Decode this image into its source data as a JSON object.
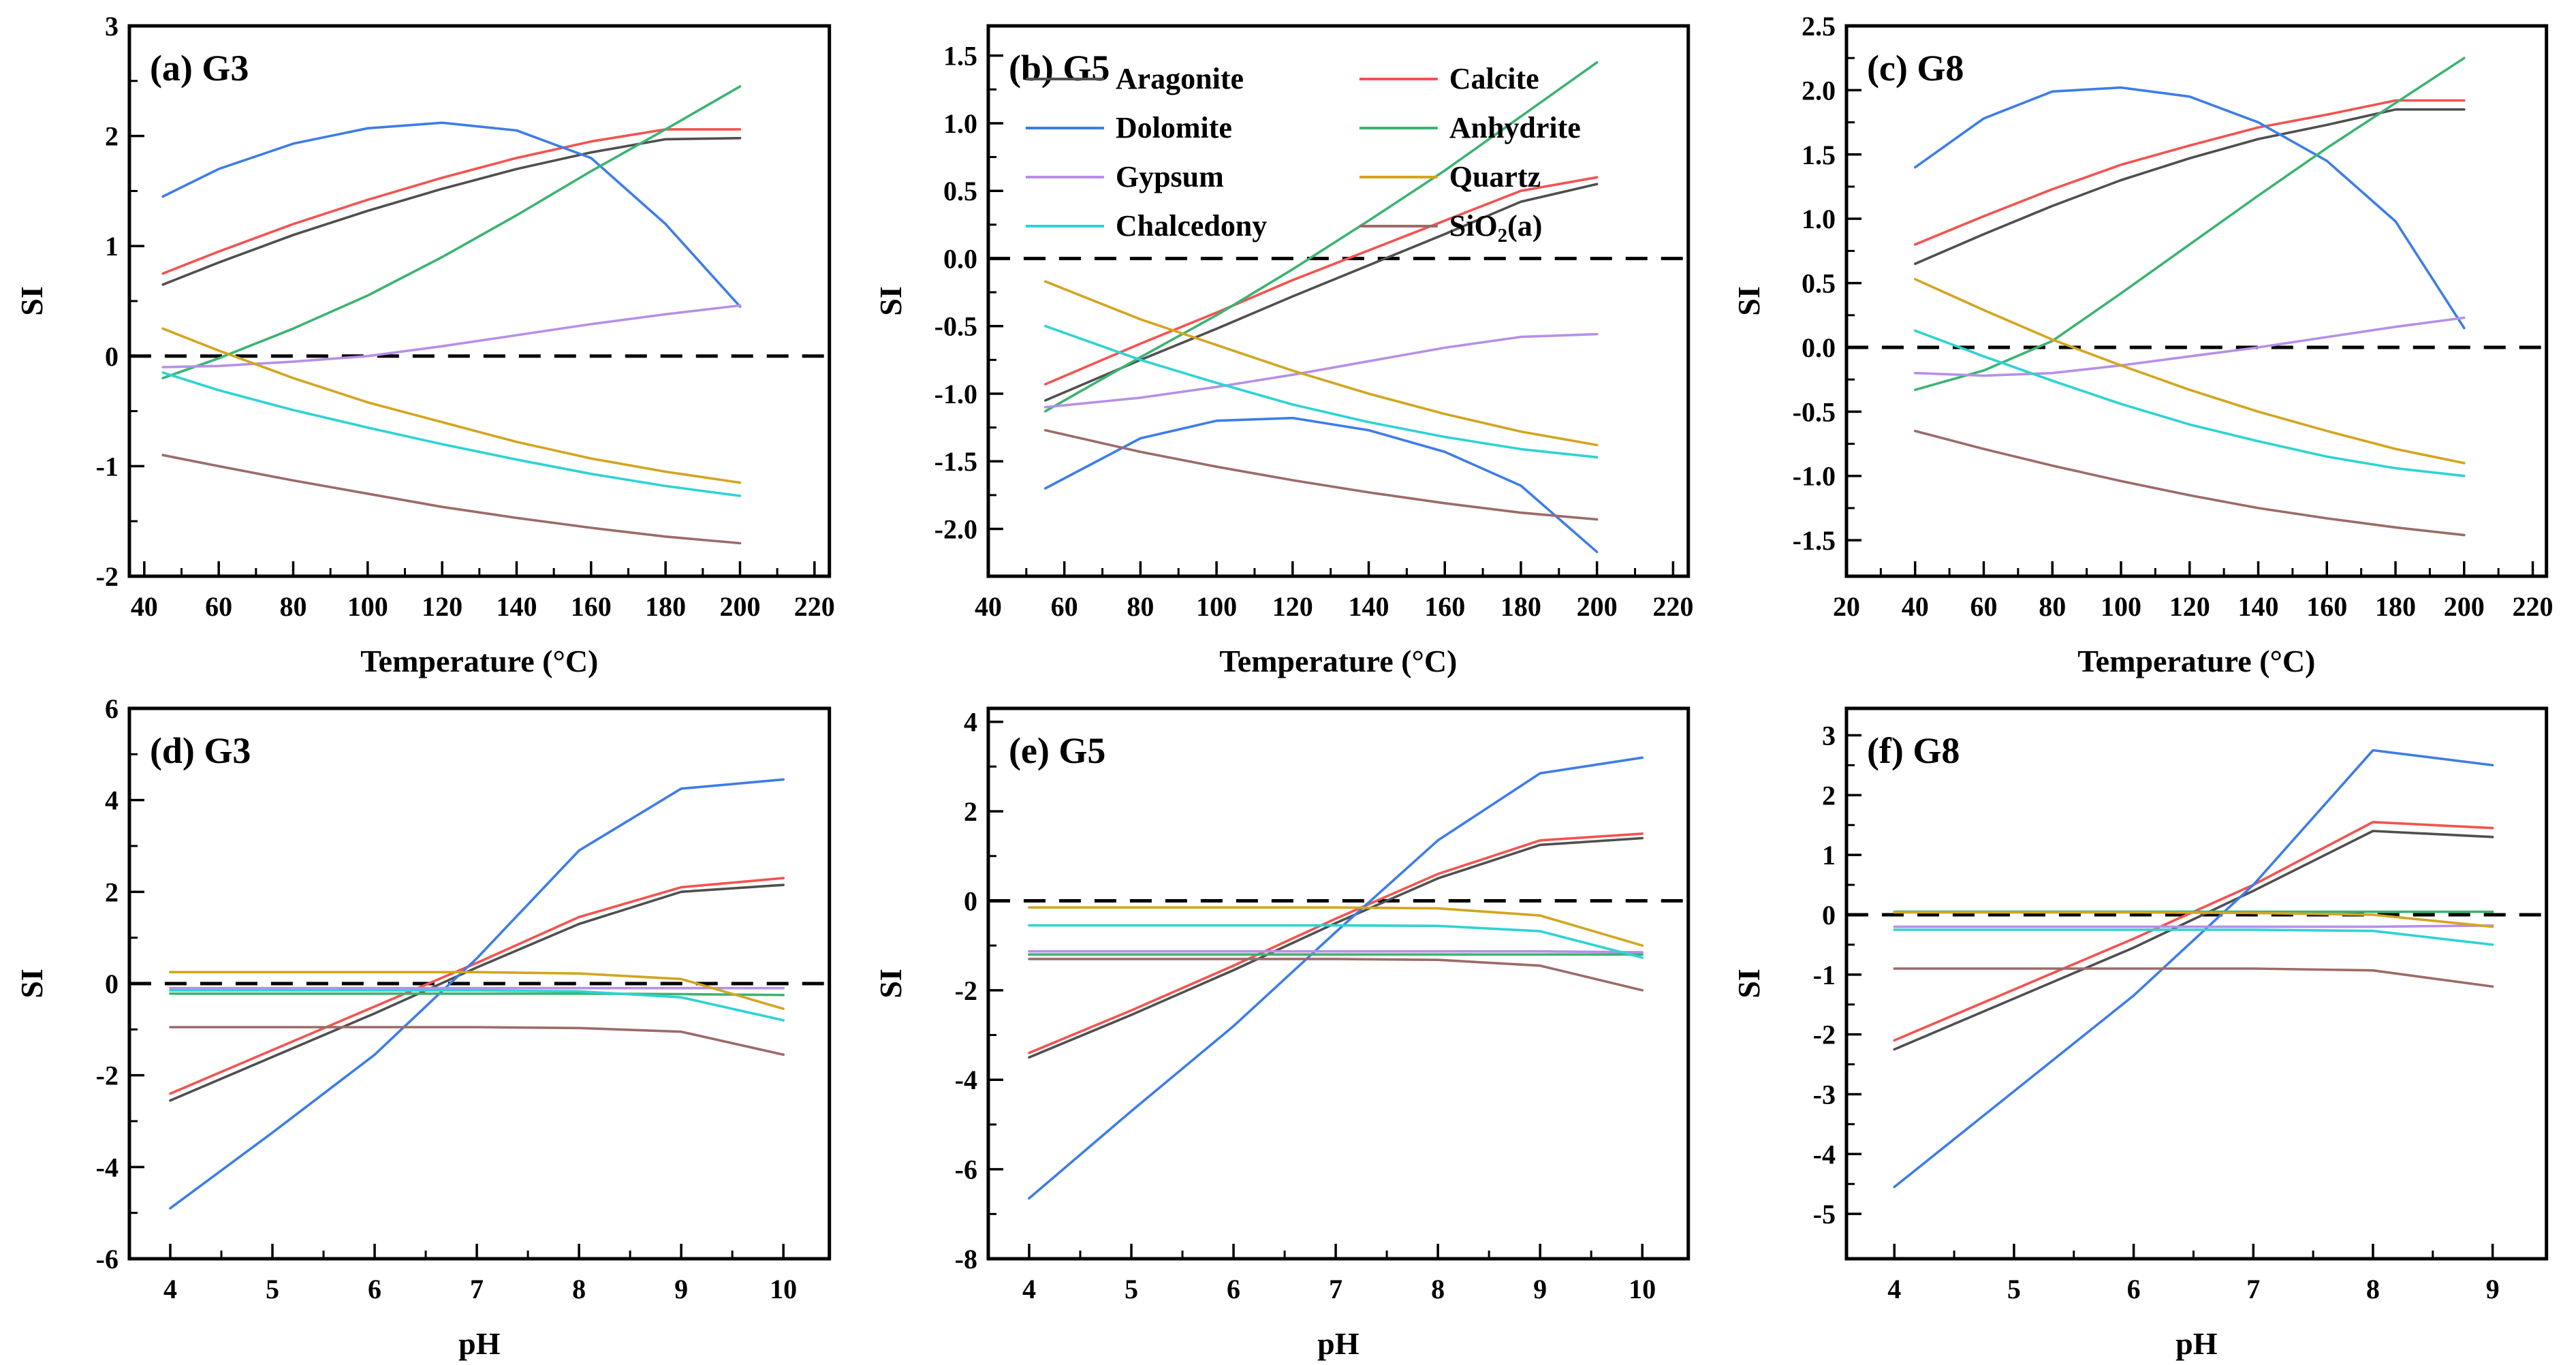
{
  "figure": {
    "background": "#ffffff",
    "frame_color": "#000000",
    "zero_line_style": "dashed"
  },
  "chart_data": {
    "type": "line",
    "ylabel": "SI",
    "colors": {
      "Aragonite": "#4f4f4f",
      "Calcite": "#f4534f",
      "Dolomite": "#3d7de6",
      "Anhydrite": "#3cb371",
      "Gypsum": "#b78fe8",
      "Quartz": "#d3a51f",
      "Chalcedony": "#2ed3d3",
      "SiO₂(a)": "#9c6b68"
    },
    "legend": {
      "panel": "b",
      "position": "upper-left",
      "entries": [
        "Aragonite",
        "Calcite",
        "Dolomite",
        "Anhydrite",
        "Gypsum",
        "Quartz",
        "Chalcedony",
        "SiO₂(a)"
      ]
    },
    "panels": [
      {
        "id": "a",
        "title": "(a) G3",
        "xlabel": "Temperature (°C)",
        "ylabel": "SI",
        "x_range": [
          36,
          224
        ],
        "y_range": [
          -2,
          3
        ],
        "x_ticks": [
          40,
          60,
          80,
          100,
          120,
          140,
          160,
          180,
          200,
          220
        ],
        "x_tick_labels": [
          "40",
          "60",
          "80",
          "100",
          "120",
          "140",
          "160",
          "180",
          "200",
          "220"
        ],
        "y_ticks": [
          -2,
          -1,
          0,
          1,
          2,
          3
        ],
        "y_tick_labels": [
          "-2",
          "-1",
          "0",
          "1",
          "2",
          "3"
        ],
        "zero_line": true,
        "legend": false,
        "x": [
          45,
          60,
          80,
          100,
          120,
          140,
          160,
          180,
          200
        ],
        "series": [
          {
            "name": "Aragonite",
            "values": [
              0.65,
              0.85,
              1.1,
              1.32,
              1.52,
              1.7,
              1.85,
              1.97,
              1.98
            ]
          },
          {
            "name": "Calcite",
            "values": [
              0.75,
              0.95,
              1.2,
              1.42,
              1.62,
              1.8,
              1.95,
              2.06,
              2.06
            ]
          },
          {
            "name": "Dolomite",
            "values": [
              1.45,
              1.7,
              1.93,
              2.07,
              2.12,
              2.05,
              1.8,
              1.2,
              0.45
            ]
          },
          {
            "name": "Anhydrite",
            "values": [
              -0.2,
              -0.02,
              0.25,
              0.55,
              0.9,
              1.28,
              1.68,
              2.06,
              2.45
            ]
          },
          {
            "name": "Gypsum",
            "values": [
              -0.1,
              -0.09,
              -0.05,
              0.0,
              0.09,
              0.19,
              0.29,
              0.38,
              0.46
            ]
          },
          {
            "name": "Quartz",
            "values": [
              0.25,
              0.05,
              -0.2,
              -0.42,
              -0.6,
              -0.78,
              -0.93,
              -1.05,
              -1.15
            ]
          },
          {
            "name": "Chalcedony",
            "values": [
              -0.15,
              -0.31,
              -0.49,
              -0.65,
              -0.8,
              -0.94,
              -1.07,
              -1.18,
              -1.27
            ]
          },
          {
            "name": "SiO₂(a)",
            "values": [
              -0.9,
              -1.0,
              -1.13,
              -1.25,
              -1.37,
              -1.47,
              -1.56,
              -1.64,
              -1.7
            ]
          }
        ]
      },
      {
        "id": "b",
        "title": "(b) G5",
        "xlabel": "Temperature (°C)",
        "ylabel": "SI",
        "x_range": [
          40,
          224
        ],
        "y_range": [
          -2.35,
          1.72
        ],
        "x_ticks": [
          40,
          60,
          80,
          100,
          120,
          140,
          160,
          180,
          200,
          220
        ],
        "x_tick_labels": [
          "40",
          "60",
          "80",
          "100",
          "120",
          "140",
          "160",
          "180",
          "200",
          "220"
        ],
        "y_ticks": [
          -2.0,
          -1.5,
          -1.0,
          -0.5,
          0.0,
          0.5,
          1.0,
          1.5
        ],
        "y_tick_labels": [
          "-2.0",
          "-1.5",
          "-1.0",
          "-0.5",
          "0.0",
          "0.5",
          "1.0",
          "1.5"
        ],
        "zero_line": true,
        "legend": true,
        "x": [
          55,
          80,
          100,
          120,
          140,
          160,
          180,
          200
        ],
        "series": [
          {
            "name": "Aragonite",
            "values": [
              -1.05,
              -0.75,
              -0.52,
              -0.28,
              -0.05,
              0.18,
              0.42,
              0.55
            ]
          },
          {
            "name": "Calcite",
            "values": [
              -0.93,
              -0.63,
              -0.4,
              -0.16,
              0.06,
              0.28,
              0.5,
              0.6
            ]
          },
          {
            "name": "Dolomite",
            "values": [
              -1.7,
              -1.33,
              -1.2,
              -1.18,
              -1.27,
              -1.43,
              -1.68,
              -2.17
            ]
          },
          {
            "name": "Anhydrite",
            "values": [
              -1.13,
              -0.73,
              -0.42,
              -0.08,
              0.28,
              0.65,
              1.05,
              1.45
            ]
          },
          {
            "name": "Gypsum",
            "values": [
              -1.1,
              -1.03,
              -0.95,
              -0.86,
              -0.76,
              -0.66,
              -0.58,
              -0.56
            ]
          },
          {
            "name": "Quartz",
            "values": [
              -0.17,
              -0.45,
              -0.64,
              -0.83,
              -1.0,
              -1.15,
              -1.28,
              -1.38
            ]
          },
          {
            "name": "Chalcedony",
            "values": [
              -0.5,
              -0.75,
              -0.92,
              -1.08,
              -1.21,
              -1.32,
              -1.41,
              -1.47
            ]
          },
          {
            "name": "SiO₂(a)",
            "values": [
              -1.27,
              -1.43,
              -1.54,
              -1.64,
              -1.73,
              -1.81,
              -1.88,
              -1.93
            ]
          }
        ]
      },
      {
        "id": "c",
        "title": "(c) G8",
        "xlabel": "Temperature (°C)",
        "ylabel": "SI",
        "x_range": [
          20,
          224
        ],
        "y_range": [
          -1.78,
          2.5
        ],
        "x_ticks": [
          20,
          40,
          60,
          80,
          100,
          120,
          140,
          160,
          180,
          200,
          220
        ],
        "x_tick_labels": [
          "20",
          "40",
          "60",
          "80",
          "100",
          "120",
          "140",
          "160",
          "180",
          "200",
          "220"
        ],
        "y_ticks": [
          -1.5,
          -1.0,
          -0.5,
          0.0,
          0.5,
          1.0,
          1.5,
          2.0,
          2.5
        ],
        "y_tick_labels": [
          "-1.5",
          "-1.0",
          "-0.5",
          "0.0",
          "0.5",
          "1.0",
          "1.5",
          "2.0",
          "2.5"
        ],
        "zero_line": true,
        "legend": false,
        "x": [
          40,
          60,
          80,
          100,
          120,
          140,
          160,
          180,
          200
        ],
        "series": [
          {
            "name": "Aragonite",
            "values": [
              0.65,
              0.88,
              1.1,
              1.3,
              1.47,
              1.62,
              1.73,
              1.85,
              1.85
            ]
          },
          {
            "name": "Calcite",
            "values": [
              0.8,
              1.02,
              1.23,
              1.42,
              1.57,
              1.71,
              1.81,
              1.92,
              1.92
            ]
          },
          {
            "name": "Dolomite",
            "values": [
              1.4,
              1.78,
              1.99,
              2.02,
              1.95,
              1.75,
              1.45,
              0.98,
              0.15
            ]
          },
          {
            "name": "Anhydrite",
            "values": [
              -0.33,
              -0.18,
              0.05,
              0.42,
              0.8,
              1.18,
              1.55,
              1.9,
              2.25
            ]
          },
          {
            "name": "Gypsum",
            "values": [
              -0.2,
              -0.22,
              -0.2,
              -0.14,
              -0.07,
              0.0,
              0.08,
              0.16,
              0.23
            ]
          },
          {
            "name": "Quartz",
            "values": [
              0.53,
              0.29,
              0.06,
              -0.14,
              -0.33,
              -0.5,
              -0.65,
              -0.79,
              -0.9
            ]
          },
          {
            "name": "Chalcedony",
            "values": [
              0.13,
              -0.07,
              -0.26,
              -0.44,
              -0.6,
              -0.73,
              -0.85,
              -0.94,
              -1.0
            ]
          },
          {
            "name": "SiO₂(a)",
            "values": [
              -0.65,
              -0.79,
              -0.92,
              -1.04,
              -1.15,
              -1.25,
              -1.33,
              -1.4,
              -1.46
            ]
          }
        ]
      },
      {
        "id": "d",
        "title": "(d) G3",
        "xlabel": "pH",
        "ylabel": "SI",
        "x_range": [
          3.6,
          10.45
        ],
        "y_range": [
          -6,
          6
        ],
        "x_ticks": [
          4,
          5,
          6,
          7,
          8,
          9,
          10
        ],
        "x_tick_labels": [
          "4",
          "5",
          "6",
          "7",
          "8",
          "9",
          "10"
        ],
        "y_ticks": [
          -6,
          -4,
          -2,
          0,
          2,
          4,
          6
        ],
        "y_tick_labels": [
          "-6",
          "-4",
          "-2",
          "0",
          "2",
          "4",
          "6"
        ],
        "zero_line": true,
        "legend": false,
        "x": [
          4,
          5,
          6,
          7,
          8,
          9,
          10
        ],
        "series": [
          {
            "name": "Aragonite",
            "values": [
              -2.55,
              -1.6,
              -0.65,
              0.35,
              1.3,
              2.0,
              2.15
            ]
          },
          {
            "name": "Calcite",
            "values": [
              -2.4,
              -1.45,
              -0.5,
              0.45,
              1.45,
              2.1,
              2.3
            ]
          },
          {
            "name": "Dolomite",
            "values": [
              -4.9,
              -3.25,
              -1.55,
              0.55,
              2.9,
              4.25,
              4.45
            ]
          },
          {
            "name": "Anhydrite",
            "values": [
              -0.22,
              -0.22,
              -0.22,
              -0.22,
              -0.22,
              -0.23,
              -0.25
            ]
          },
          {
            "name": "Gypsum",
            "values": [
              -0.1,
              -0.1,
              -0.1,
              -0.1,
              -0.1,
              -0.1,
              -0.1
            ]
          },
          {
            "name": "Quartz",
            "values": [
              0.25,
              0.25,
              0.25,
              0.25,
              0.22,
              0.1,
              -0.55
            ]
          },
          {
            "name": "Chalcedony",
            "values": [
              -0.15,
              -0.15,
              -0.15,
              -0.15,
              -0.17,
              -0.3,
              -0.8
            ]
          },
          {
            "name": "SiO₂(a)",
            "values": [
              -0.95,
              -0.95,
              -0.95,
              -0.95,
              -0.97,
              -1.05,
              -1.55
            ]
          }
        ]
      },
      {
        "id": "e",
        "title": "(e) G5",
        "xlabel": "pH",
        "ylabel": "SI",
        "x_range": [
          3.6,
          10.45
        ],
        "y_range": [
          -8,
          4.3
        ],
        "x_ticks": [
          4,
          5,
          6,
          7,
          8,
          9,
          10
        ],
        "x_tick_labels": [
          "4",
          "5",
          "6",
          "7",
          "8",
          "9",
          "10"
        ],
        "y_ticks": [
          -8,
          -6,
          -4,
          -2,
          0,
          2,
          4
        ],
        "y_tick_labels": [
          "-8",
          "-6",
          "-4",
          "-2",
          "0",
          "2",
          "4"
        ],
        "zero_line": true,
        "legend": false,
        "x": [
          4,
          5,
          6,
          7,
          8,
          9,
          10
        ],
        "series": [
          {
            "name": "Aragonite",
            "values": [
              -3.5,
              -2.55,
              -1.55,
              -0.5,
              0.5,
              1.25,
              1.4
            ]
          },
          {
            "name": "Calcite",
            "values": [
              -3.4,
              -2.45,
              -1.45,
              -0.4,
              0.6,
              1.35,
              1.5
            ]
          },
          {
            "name": "Dolomite",
            "values": [
              -6.65,
              -4.7,
              -2.8,
              -0.7,
              1.35,
              2.85,
              3.2
            ]
          },
          {
            "name": "Anhydrite",
            "values": [
              -1.2,
              -1.2,
              -1.2,
              -1.2,
              -1.2,
              -1.2,
              -1.2
            ]
          },
          {
            "name": "Gypsum",
            "values": [
              -1.13,
              -1.13,
              -1.13,
              -1.13,
              -1.13,
              -1.13,
              -1.15
            ]
          },
          {
            "name": "Quartz",
            "values": [
              -0.15,
              -0.15,
              -0.15,
              -0.15,
              -0.17,
              -0.33,
              -1.0
            ]
          },
          {
            "name": "Chalcedony",
            "values": [
              -0.55,
              -0.55,
              -0.55,
              -0.55,
              -0.56,
              -0.68,
              -1.27
            ]
          },
          {
            "name": "SiO₂(a)",
            "values": [
              -1.3,
              -1.3,
              -1.3,
              -1.3,
              -1.32,
              -1.45,
              -2.0
            ]
          }
        ]
      },
      {
        "id": "f",
        "title": "(f) G8",
        "xlabel": "pH",
        "ylabel": "SI",
        "x_range": [
          3.6,
          9.45
        ],
        "y_range": [
          -5.75,
          3.45
        ],
        "x_ticks": [
          4,
          5,
          6,
          7,
          8,
          9
        ],
        "x_tick_labels": [
          "4",
          "5",
          "6",
          "7",
          "8",
          "9"
        ],
        "y_ticks": [
          -5,
          -4,
          -3,
          -2,
          -1,
          0,
          1,
          2,
          3
        ],
        "y_tick_labels": [
          "-5",
          "-4",
          "-3",
          "-2",
          "-1",
          "0",
          "1",
          "2",
          "3"
        ],
        "zero_line": true,
        "legend": false,
        "x": [
          4,
          5,
          6,
          7,
          8,
          9
        ],
        "series": [
          {
            "name": "Aragonite",
            "values": [
              -2.25,
              -1.4,
              -0.55,
              0.4,
              1.4,
              1.3
            ]
          },
          {
            "name": "Calcite",
            "values": [
              -2.1,
              -1.25,
              -0.4,
              0.5,
              1.55,
              1.45
            ]
          },
          {
            "name": "Dolomite",
            "values": [
              -4.55,
              -2.95,
              -1.35,
              0.5,
              2.75,
              2.5
            ]
          },
          {
            "name": "Anhydrite",
            "values": [
              0.05,
              0.05,
              0.05,
              0.05,
              0.05,
              0.05
            ]
          },
          {
            "name": "Gypsum",
            "values": [
              -0.2,
              -0.2,
              -0.2,
              -0.2,
              -0.2,
              -0.18
            ]
          },
          {
            "name": "Quartz",
            "values": [
              0.04,
              0.04,
              0.04,
              0.03,
              0.0,
              -0.2
            ]
          },
          {
            "name": "Chalcedony",
            "values": [
              -0.25,
              -0.25,
              -0.25,
              -0.25,
              -0.27,
              -0.5
            ]
          },
          {
            "name": "SiO₂(a)",
            "values": [
              -0.9,
              -0.9,
              -0.9,
              -0.9,
              -0.93,
              -1.2
            ]
          }
        ]
      }
    ]
  }
}
